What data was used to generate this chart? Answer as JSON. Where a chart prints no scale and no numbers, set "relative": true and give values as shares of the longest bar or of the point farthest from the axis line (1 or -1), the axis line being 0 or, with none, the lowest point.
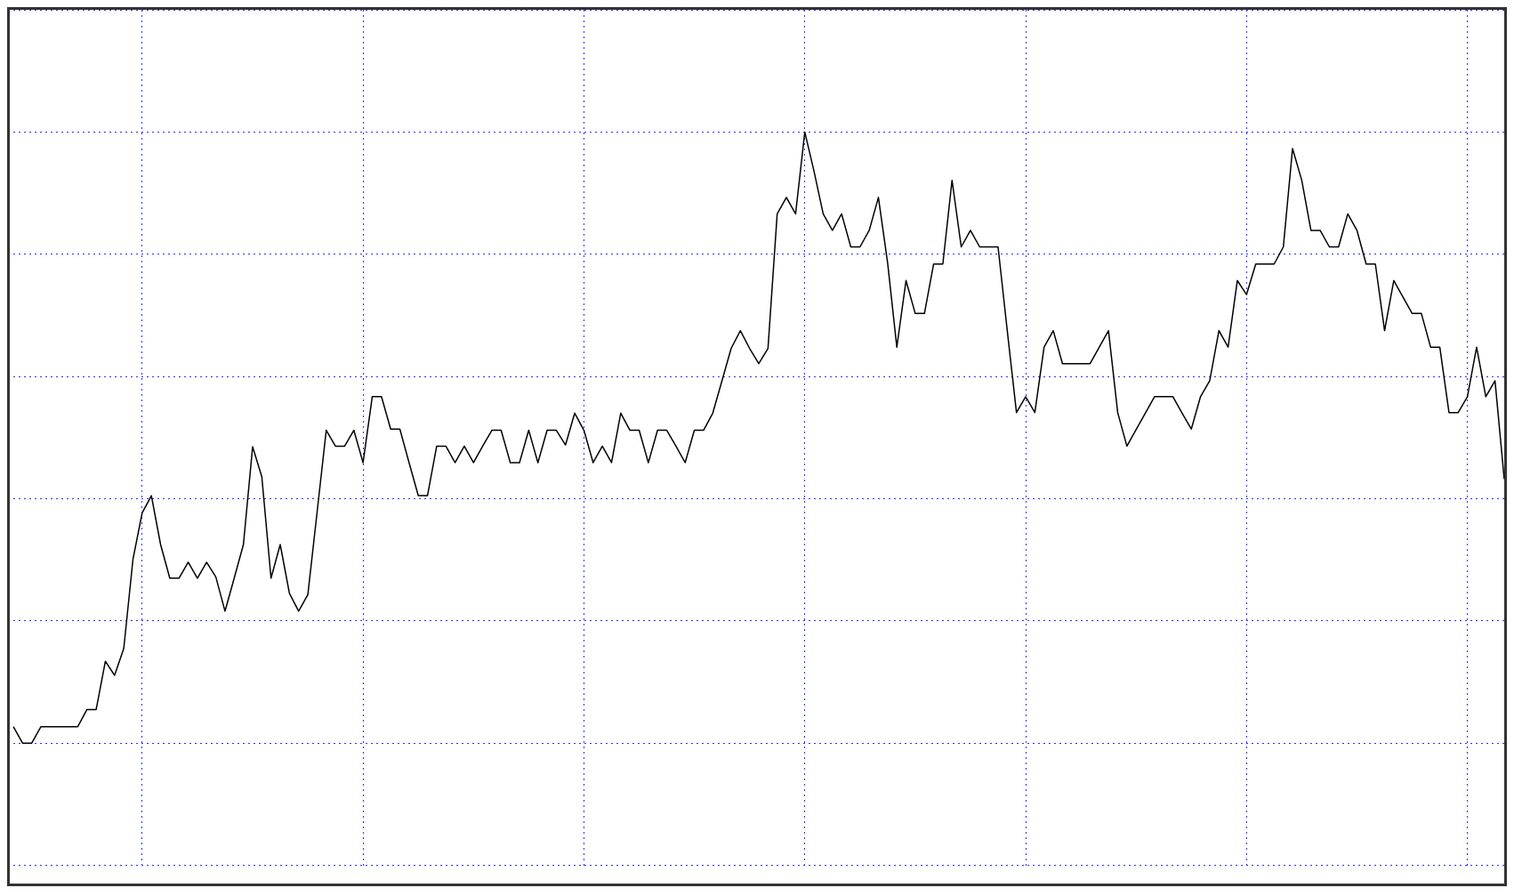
{
  "chart_data": {
    "type": "line",
    "relative": true,
    "grid": true,
    "marker": "none",
    "line_style": "solid",
    "legend": false,
    "categories": [
      null,
      null,
      null,
      null,
      null,
      null,
      null,
      null,
      null,
      null,
      null,
      null,
      null,
      null,
      null,
      null,
      null,
      null,
      null,
      null,
      null,
      null,
      null,
      null,
      null,
      null,
      null,
      null,
      null,
      null,
      null,
      null,
      null,
      null,
      null,
      null,
      null,
      null,
      null,
      null,
      null,
      null,
      null,
      null,
      null,
      null,
      null,
      null,
      null,
      null,
      null,
      null,
      null,
      null,
      null,
      null,
      null,
      null,
      null,
      null,
      null,
      null,
      null,
      null,
      null,
      null,
      null,
      null,
      null,
      null,
      null,
      null,
      null,
      null,
      null,
      null,
      null,
      null,
      null,
      null,
      null,
      null,
      null,
      null,
      null,
      null,
      null,
      null,
      null,
      null,
      null,
      null,
      null,
      null,
      null,
      null,
      null,
      null,
      null,
      null,
      null,
      null,
      null,
      null,
      null,
      null,
      null,
      null,
      null,
      null,
      null,
      null,
      null,
      null,
      null,
      null,
      null,
      null,
      null,
      null,
      null,
      null,
      null,
      null,
      null,
      null,
      null,
      null,
      null,
      null,
      null,
      null,
      null,
      null,
      null,
      null,
      null,
      null,
      null,
      null,
      null,
      null,
      null,
      null,
      null,
      null,
      null,
      null,
      null,
      null,
      null,
      null,
      null,
      null,
      null,
      null,
      null,
      null,
      null,
      null,
      null,
      null,
      null
    ],
    "series": [
      {
        "color": "#000000",
        "values": [
          0.027,
          0,
          0,
          0.027,
          0.027,
          0.027,
          0.027,
          0.027,
          0.055,
          0.055,
          0.134,
          0.111,
          0.155,
          0.301,
          0.377,
          0.405,
          0.325,
          0.27,
          0.27,
          0.296,
          0.27,
          0.296,
          0.272,
          0.216,
          0.27,
          0.325,
          0.485,
          0.436,
          0.27,
          0.325,
          0.245,
          0.216,
          0.243,
          0.377,
          0.512,
          0.486,
          0.486,
          0.512,
          0.459,
          0.567,
          0.567,
          0.514,
          0.514,
          0.459,
          0.405,
          0.405,
          0.486,
          0.486,
          0.459,
          0.486,
          0.459,
          0.486,
          0.512,
          0.512,
          0.459,
          0.459,
          0.512,
          0.459,
          0.512,
          0.512,
          0.488,
          0.54,
          0.512,
          0.459,
          0.486,
          0.459,
          0.54,
          0.512,
          0.512,
          0.459,
          0.512,
          0.512,
          0.486,
          0.459,
          0.512,
          0.512,
          0.54,
          0.593,
          0.646,
          0.675,
          0.646,
          0.621,
          0.646,
          0.866,
          0.893,
          0.866,
          1,
          0.936,
          0.866,
          0.839,
          0.866,
          0.812,
          0.812,
          0.839,
          0.893,
          0.786,
          0.648,
          0.757,
          0.703,
          0.703,
          0.784,
          0.784,
          0.921,
          0.812,
          0.839,
          0.812,
          0.812,
          0.812,
          0.675,
          0.541,
          0.567,
          0.541,
          0.648,
          0.675,
          0.621,
          0.621,
          0.621,
          0.621,
          0.648,
          0.675,
          0.541,
          0.486,
          0.513,
          0.54,
          0.567,
          0.567,
          0.567,
          0.54,
          0.514,
          0.567,
          0.593,
          0.675,
          0.648,
          0.757,
          0.734,
          0.784,
          0.784,
          0.784,
          0.812,
          0.973,
          0.921,
          0.839,
          0.839,
          0.812,
          0.812,
          0.866,
          0.839,
          0.784,
          0.784,
          0.675,
          0.757,
          0.73,
          0.703,
          0.703,
          0.648,
          0.648,
          0.541,
          0.541,
          0.567,
          0.648,
          0.567,
          0.593,
          0.432
        ]
      }
    ]
  }
}
